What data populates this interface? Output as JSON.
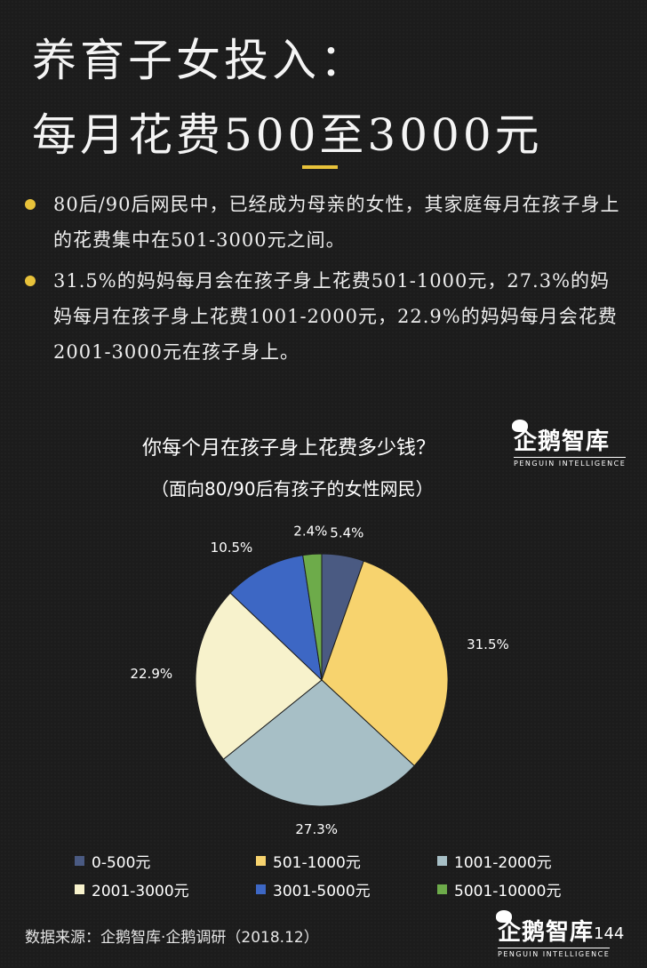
{
  "header": {
    "title_line1": "养育子女投入：",
    "title_line2": "每月花费500至3000元"
  },
  "bullets": [
    "80后/90后网民中，已经成为母亲的女性，其家庭每月在孩子身上的花费集中在501-3000元之间。",
    "31.5%的妈妈每月会在孩子身上花费501-1000元，27.3%的妈妈每月在孩子身上花费1001-2000元，22.9%的妈妈每月会花费2001-3000元在孩子身上。"
  ],
  "brand": {
    "name": "企鹅智库",
    "sub": "PENGUIN INTELLIGENCE"
  },
  "chart_data": {
    "type": "pie",
    "title": "你每个月在孩子身上花费多少钱？",
    "subtitle": "（面向80/90后有孩子的女性网民）",
    "categories": [
      "0-500元",
      "501-1000元",
      "1001-2000元",
      "2001-3000元",
      "3001-5000元",
      "5001-10000元"
    ],
    "values": [
      5.4,
      31.5,
      27.3,
      22.9,
      10.5,
      2.4
    ],
    "labels": [
      "5.4%",
      "31.5%",
      "27.3%",
      "22.9%",
      "10.5%",
      "2.4%"
    ],
    "colors": [
      "#4a5a82",
      "#f7d36e",
      "#a7bfc6",
      "#f7f2cc",
      "#3d67c4",
      "#6dab4a"
    ],
    "legend_position": "bottom"
  },
  "footer": {
    "source": "数据来源：企鹅智库·企鹅调研（2018.12）",
    "page": "144"
  }
}
